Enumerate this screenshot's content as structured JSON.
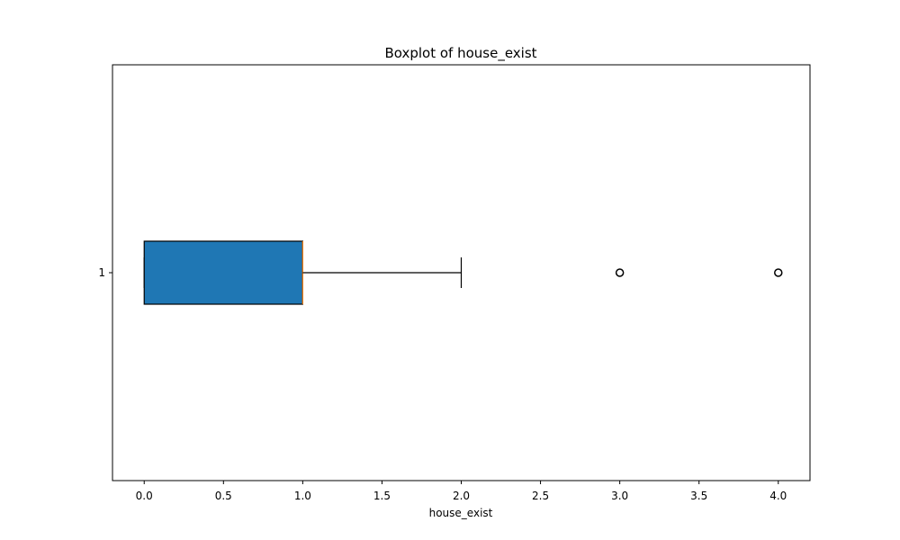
{
  "chart_data": {
    "type": "boxplot",
    "orientation": "horizontal",
    "title": "Boxplot of house_exist",
    "xlabel": "house_exist",
    "ylabel": "",
    "xlim": [
      -0.2,
      4.2
    ],
    "xticks": [
      0.0,
      0.5,
      1.0,
      1.5,
      2.0,
      2.5,
      3.0,
      3.5,
      4.0
    ],
    "xtick_labels": [
      "0.0",
      "0.5",
      "1.0",
      "1.5",
      "2.0",
      "2.5",
      "3.0",
      "3.5",
      "4.0"
    ],
    "yticks": [
      1
    ],
    "ytick_labels": [
      "1"
    ],
    "grid": false,
    "series": [
      {
        "position": 1,
        "whisker_low": 0.0,
        "q1": 0.0,
        "median": 1.0,
        "q3": 1.0,
        "whisker_high": 2.0,
        "outliers": [
          3.0,
          4.0
        ]
      }
    ],
    "colors": {
      "box_fill": "#1f77b4",
      "box_edge": "#000000",
      "median": "#ff7f0e",
      "whisker": "#000000",
      "outlier_edge": "#000000"
    }
  }
}
